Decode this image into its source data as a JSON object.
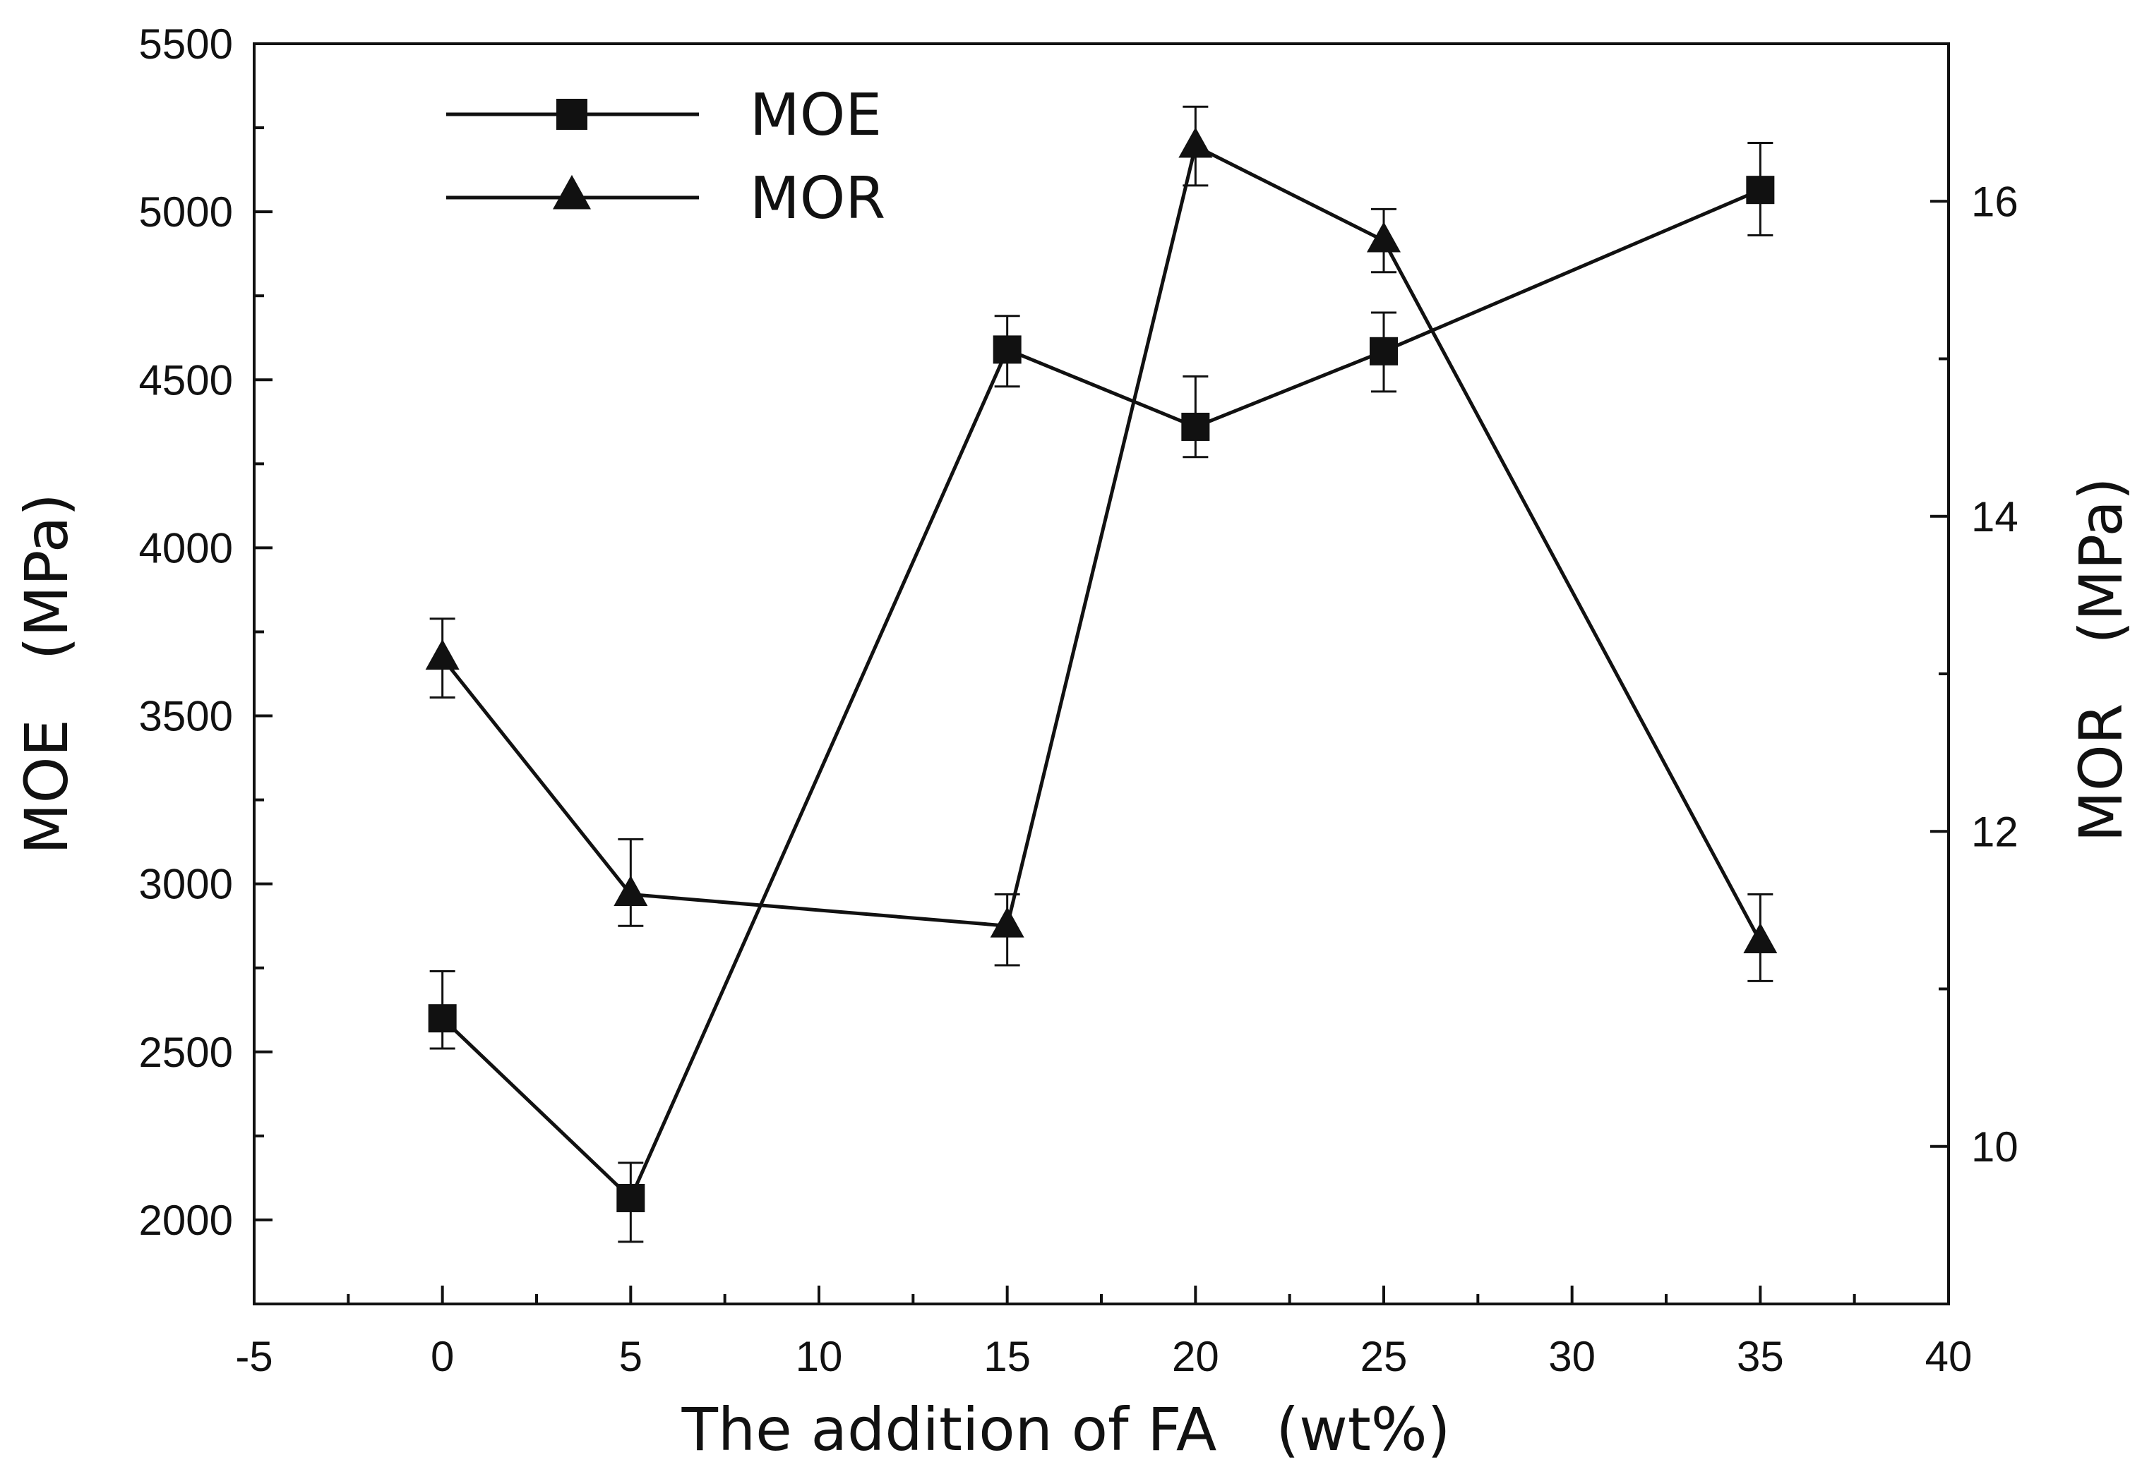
{
  "chart_data": {
    "type": "line",
    "title": "",
    "xlabel": "The addition of FA　(wt%)",
    "ylabel": "MOE　(MPa)",
    "y2label": "MOR　(MPa)",
    "xlim": [
      -5,
      40
    ],
    "ylim": [
      1750,
      5500
    ],
    "y2lim": [
      9,
      17.0
    ],
    "x_ticks": [
      "-5",
      "0",
      "5",
      "10",
      "15",
      "20",
      "25",
      "30",
      "35",
      "40"
    ],
    "x_tick_values": [
      -5,
      0,
      5,
      10,
      15,
      20,
      25,
      30,
      35,
      40
    ],
    "y_ticks": [
      "2000",
      "2500",
      "3000",
      "3500",
      "4000",
      "4500",
      "5000",
      "5500"
    ],
    "y_tick_values": [
      2000,
      2500,
      3000,
      3500,
      4000,
      4500,
      5000,
      5500
    ],
    "y2_ticks": [
      "10",
      "12",
      "14",
      "16"
    ],
    "y2_tick_values": [
      10,
      12,
      14,
      16
    ],
    "legend_position": "top-left",
    "series": [
      {
        "name": "MOE",
        "axis": "left",
        "marker": "square",
        "x": [
          0,
          5,
          15,
          20,
          25,
          35
        ],
        "values": [
          2600,
          2065,
          4590,
          4360,
          4585,
          5065
        ],
        "error_low": [
          2510,
          1935,
          4480,
          4270,
          4465,
          4930
        ],
        "error_high": [
          2740,
          2170,
          4690,
          4510,
          4700,
          5205
        ]
      },
      {
        "name": "MOR",
        "axis": "right",
        "marker": "triangle",
        "x": [
          0,
          5,
          15,
          20,
          25,
          35
        ],
        "values": [
          13.1,
          11.6,
          11.4,
          16.35,
          15.75,
          11.3
        ],
        "error_low": [
          12.85,
          11.4,
          11.15,
          16.1,
          15.55,
          11.05
        ],
        "error_high": [
          13.35,
          11.95,
          11.6,
          16.6,
          15.95,
          11.6
        ]
      }
    ]
  }
}
